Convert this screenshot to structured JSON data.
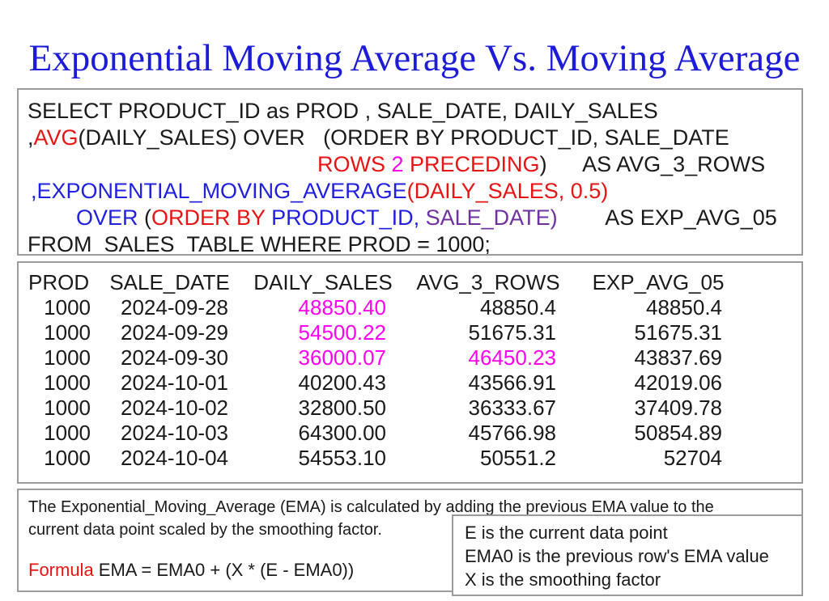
{
  "colors": {
    "black": "#1a1a1a",
    "red": "#e81414",
    "blue": "#2020e0",
    "magenta": "#ff00f0",
    "purple": "#7030a0",
    "title_blue": "#1b1bd8",
    "border_gray": "#9b9b9b"
  },
  "title": {
    "text": "Exponential Moving Average Vs. Moving Average"
  },
  "sql": {
    "lines": [
      {
        "indent": 0,
        "segments": [
          {
            "t": "SELECT PRODUCT_ID as PROD , SALE_DATE, DAILY_SALES",
            "c": "black"
          }
        ]
      },
      {
        "indent": 0,
        "segments": [
          {
            "t": ",",
            "c": "black"
          },
          {
            "t": "AVG",
            "c": "red"
          },
          {
            "t": "(DAILY_SALES) OVER   (ORDER BY PRODUCT_ID, SALE_DATE",
            "c": "black"
          }
        ]
      },
      {
        "indent": 2,
        "segments": [
          {
            "t": "ROWS ",
            "c": "red"
          },
          {
            "t": "2",
            "c": "magenta"
          },
          {
            "t": " PRECEDING",
            "c": "red"
          },
          {
            "t": ")",
            "c": "black"
          },
          {
            "t": "      AS AVG_3_ROWS",
            "c": "black"
          }
        ]
      },
      {
        "indent": 1,
        "segments": [
          {
            "t": ",EXPONENTIAL_MOVING_AVERAGE",
            "c": "blue"
          },
          {
            "t": "(DAILY_SALES, 0.5)",
            "c": "red"
          }
        ]
      },
      {
        "indent": 3,
        "segments": [
          {
            "t": "OVER ",
            "c": "blue"
          },
          {
            "t": "(",
            "c": "black"
          },
          {
            "t": "ORDER BY ",
            "c": "red"
          },
          {
            "t": "PRODUCT_ID",
            "c": "blue"
          },
          {
            "t": ", ",
            "c": "blue"
          },
          {
            "t": "SALE_DATE)",
            "c": "purple"
          },
          {
            "t": "        AS EXP_AVG_05",
            "c": "black"
          }
        ]
      },
      {
        "indent": 0,
        "segments": [
          {
            "t": "FROM  SALES_TABLE WHERE PROD = 1000;",
            "c": "black"
          }
        ]
      }
    ]
  },
  "table": {
    "headers": [
      "PROD",
      "SALE_DATE",
      "DAILY_SALES",
      "AVG_3_ROWS",
      "EXP_AVG_05"
    ],
    "rows": [
      [
        {
          "t": "1000"
        },
        {
          "t": "2024-09-28"
        },
        {
          "t": "48850.40",
          "c": "magenta"
        },
        {
          "t": "48850.4"
        },
        {
          "t": "48850.4"
        }
      ],
      [
        {
          "t": "1000"
        },
        {
          "t": "2024-09-29"
        },
        {
          "t": "54500.22",
          "c": "magenta"
        },
        {
          "t": "51675.31"
        },
        {
          "t": "51675.31"
        }
      ],
      [
        {
          "t": "1000"
        },
        {
          "t": "2024-09-30"
        },
        {
          "t": "36000.07",
          "c": "magenta"
        },
        {
          "t": "46450.23",
          "c": "magenta"
        },
        {
          "t": "43837.69"
        }
      ],
      [
        {
          "t": "1000"
        },
        {
          "t": "2024-10-01"
        },
        {
          "t": "40200.43"
        },
        {
          "t": "43566.91"
        },
        {
          "t": "42019.06"
        }
      ],
      [
        {
          "t": "1000"
        },
        {
          "t": "2024-10-02"
        },
        {
          "t": "32800.50"
        },
        {
          "t": "36333.67"
        },
        {
          "t": "37409.78"
        }
      ],
      [
        {
          "t": "1000"
        },
        {
          "t": "2024-10-03"
        },
        {
          "t": "64300.00"
        },
        {
          "t": "45766.98"
        },
        {
          "t": "50854.89"
        }
      ],
      [
        {
          "t": "1000"
        },
        {
          "t": "2024-10-04"
        },
        {
          "t": "54553.10"
        },
        {
          "t": "50551.2"
        },
        {
          "t": "52704"
        }
      ]
    ]
  },
  "note": {
    "lines": [
      "The Exponential_Moving_Average (EMA) is calculated by adding the previous EMA value to the",
      "current data point scaled by the smoothing factor."
    ],
    "formula_label": "Formula",
    "formula": " EMA = EMA0 + (X * (E - EMA0))"
  },
  "legend": {
    "lines": [
      "E is the current data point",
      "EMA0 is the previous row's EMA value",
      "X is the smoothing factor"
    ]
  }
}
